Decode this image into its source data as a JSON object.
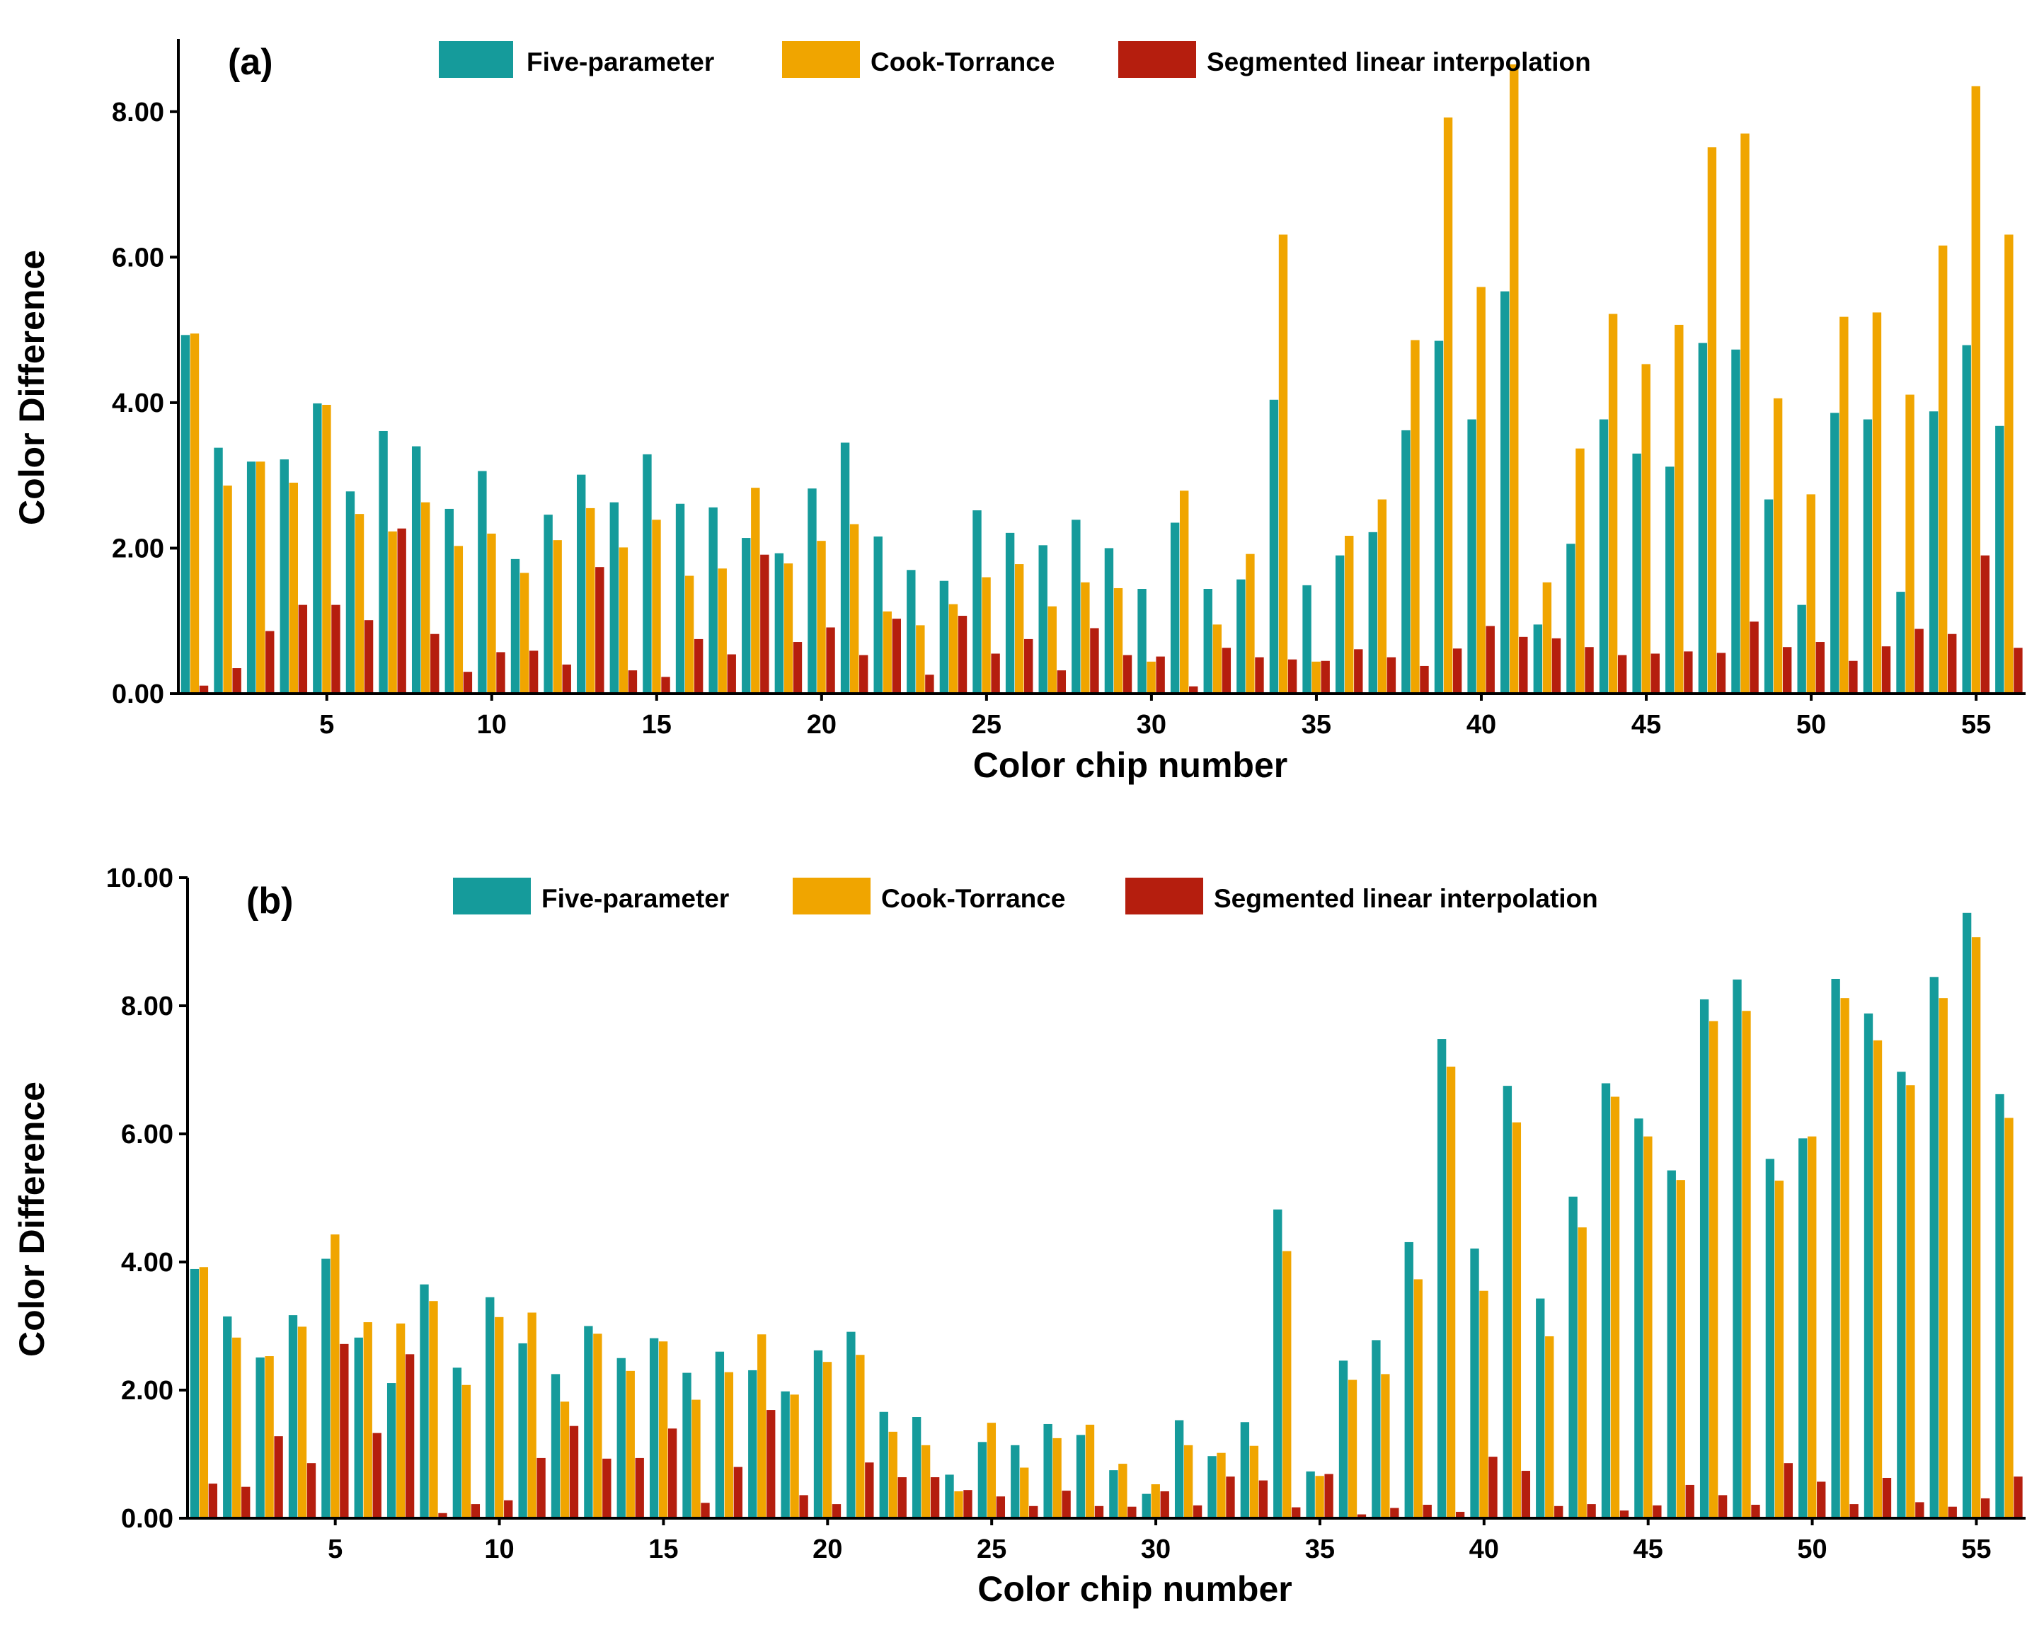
{
  "colors": {
    "five_parameter": "#159B9B",
    "cook_torrance": "#F0A500",
    "segmented": "#B51E0E",
    "axis": "#000000"
  },
  "chart_data": [
    {
      "type": "bar",
      "panel_label": "(a)",
      "xlabel": "Color chip number",
      "ylabel": "Color Difference",
      "ylim": [
        0,
        9.0
      ],
      "yticks": [
        0,
        2,
        4,
        6,
        8
      ],
      "ytick_labels": [
        "0.00",
        "2.00",
        "4.00",
        "6.00",
        "8.00"
      ],
      "xticks": [
        5,
        10,
        15,
        20,
        25,
        30,
        35,
        40,
        45,
        50,
        55
      ],
      "xtick_labels": [
        "5",
        "10",
        "15",
        "20",
        "25",
        "30",
        "35",
        "40",
        "45",
        "50",
        "55"
      ],
      "legend": [
        "Five-parameter",
        "Cook-Torrance",
        "Segmented linear interpolation"
      ],
      "categories": [
        1,
        2,
        3,
        4,
        5,
        6,
        7,
        8,
        9,
        10,
        11,
        12,
        13,
        14,
        15,
        16,
        17,
        18,
        19,
        20,
        21,
        22,
        23,
        24,
        25,
        26,
        27,
        28,
        29,
        30,
        31,
        32,
        33,
        34,
        35,
        36,
        37,
        38,
        39,
        40,
        41,
        42,
        43,
        44,
        45,
        46,
        47,
        48,
        49,
        50,
        51,
        52,
        53,
        54,
        55,
        56
      ],
      "series": [
        {
          "name": "Five-parameter",
          "values": [
            4.93,
            3.38,
            3.19,
            3.22,
            3.99,
            2.78,
            3.61,
            3.4,
            2.54,
            3.06,
            1.85,
            2.46,
            3.01,
            2.63,
            3.29,
            2.61,
            2.56,
            2.14,
            1.93,
            2.82,
            3.45,
            2.16,
            1.7,
            1.55,
            2.52,
            2.21,
            2.04,
            2.39,
            2.0,
            1.44,
            2.35,
            1.44,
            1.57,
            4.04,
            1.49,
            1.9,
            2.22,
            3.62,
            4.85,
            3.77,
            5.53,
            0.95,
            2.06,
            3.77,
            3.3,
            3.12,
            4.82,
            4.73,
            2.67,
            1.22,
            3.86,
            3.77,
            1.4,
            3.88,
            4.79,
            3.68
          ]
        },
        {
          "name": "Cook-Torrance",
          "values": [
            4.95,
            2.86,
            3.19,
            2.9,
            3.97,
            2.47,
            2.23,
            2.63,
            2.03,
            2.2,
            1.66,
            2.11,
            2.55,
            2.01,
            2.39,
            1.62,
            1.72,
            2.83,
            1.79,
            2.1,
            2.33,
            1.13,
            0.94,
            1.23,
            1.6,
            1.78,
            1.2,
            1.53,
            1.45,
            0.44,
            2.79,
            0.95,
            1.92,
            6.31,
            0.44,
            2.17,
            2.67,
            4.86,
            7.92,
            5.59,
            8.65,
            1.53,
            3.37,
            5.22,
            4.53,
            5.07,
            7.51,
            7.7,
            4.06,
            2.74,
            5.18,
            5.24,
            4.11,
            6.16,
            8.35,
            6.31
          ]
        },
        {
          "name": "Segmented linear interpolation",
          "values": [
            0.11,
            0.35,
            0.86,
            1.22,
            1.22,
            1.01,
            2.27,
            0.82,
            0.3,
            0.57,
            0.59,
            0.4,
            1.74,
            0.32,
            0.23,
            0.75,
            0.54,
            1.91,
            0.71,
            0.91,
            0.53,
            1.03,
            0.26,
            1.07,
            0.55,
            0.75,
            0.32,
            0.9,
            0.53,
            0.51,
            0.1,
            0.63,
            0.5,
            0.47,
            0.45,
            0.61,
            0.5,
            0.38,
            0.62,
            0.93,
            0.78,
            0.76,
            0.64,
            0.53,
            0.55,
            0.58,
            0.56,
            0.99,
            0.64,
            0.71,
            0.45,
            0.65,
            0.89,
            0.82,
            1.9,
            0.63
          ]
        }
      ]
    },
    {
      "type": "bar",
      "panel_label": "(b)",
      "xlabel": "Color chip number",
      "ylabel": "Color Difference",
      "ylim": [
        0,
        10.0
      ],
      "yticks": [
        0,
        2,
        4,
        6,
        8,
        10
      ],
      "ytick_labels": [
        "0.00",
        "2.00",
        "4.00",
        "6.00",
        "8.00",
        "10.00"
      ],
      "xticks": [
        5,
        10,
        15,
        20,
        25,
        30,
        35,
        40,
        45,
        50,
        55
      ],
      "xtick_labels": [
        "5",
        "10",
        "15",
        "20",
        "25",
        "30",
        "35",
        "40",
        "45",
        "50",
        "55"
      ],
      "legend": [
        "Five-parameter",
        "Cook-Torrance",
        "Segmented linear interpolation"
      ],
      "categories": [
        1,
        2,
        3,
        4,
        5,
        6,
        7,
        8,
        9,
        10,
        11,
        12,
        13,
        14,
        15,
        16,
        17,
        18,
        19,
        20,
        21,
        22,
        23,
        24,
        25,
        26,
        27,
        28,
        29,
        30,
        31,
        32,
        33,
        34,
        35,
        36,
        37,
        38,
        39,
        40,
        41,
        42,
        43,
        44,
        45,
        46,
        47,
        48,
        49,
        50,
        51,
        52,
        53,
        54,
        55,
        56
      ],
      "series": [
        {
          "name": "Five-parameter",
          "values": [
            3.89,
            3.15,
            2.51,
            3.17,
            4.05,
            2.82,
            2.11,
            3.65,
            2.35,
            3.45,
            2.73,
            2.25,
            3.0,
            2.5,
            2.81,
            2.27,
            2.6,
            2.31,
            1.98,
            2.62,
            2.91,
            1.66,
            1.58,
            0.68,
            1.19,
            1.14,
            1.47,
            1.3,
            0.75,
            0.38,
            1.53,
            0.97,
            1.5,
            4.82,
            0.73,
            2.46,
            2.78,
            4.31,
            7.48,
            4.21,
            6.75,
            3.43,
            5.02,
            6.79,
            6.24,
            5.43,
            8.1,
            8.41,
            5.61,
            5.93,
            8.42,
            7.88,
            6.97,
            8.45,
            9.45,
            6.62
          ]
        },
        {
          "name": "Cook-Torrance",
          "values": [
            3.92,
            2.82,
            2.53,
            2.99,
            4.43,
            3.06,
            3.04,
            3.39,
            2.08,
            3.14,
            3.21,
            1.82,
            2.88,
            2.3,
            2.76,
            1.85,
            2.28,
            2.87,
            1.93,
            2.44,
            2.55,
            1.35,
            1.14,
            0.42,
            1.49,
            0.79,
            1.25,
            1.46,
            0.85,
            0.53,
            1.14,
            1.02,
            1.13,
            4.17,
            0.66,
            2.16,
            2.25,
            3.73,
            7.05,
            3.55,
            6.18,
            2.84,
            4.54,
            6.58,
            5.96,
            5.28,
            7.76,
            7.92,
            5.27,
            5.96,
            8.12,
            7.46,
            6.76,
            8.12,
            9.07,
            6.25
          ]
        },
        {
          "name": "Segmented linear interpolation",
          "values": [
            0.54,
            0.49,
            1.28,
            0.86,
            2.72,
            1.33,
            2.56,
            0.08,
            0.22,
            0.28,
            0.94,
            1.44,
            0.93,
            0.94,
            1.4,
            0.24,
            0.8,
            1.69,
            0.36,
            0.22,
            0.87,
            0.64,
            0.64,
            0.44,
            0.34,
            0.19,
            0.43,
            0.19,
            0.18,
            0.42,
            0.2,
            0.65,
            0.59,
            0.17,
            0.69,
            0.06,
            0.16,
            0.21,
            0.1,
            0.96,
            0.74,
            0.19,
            0.22,
            0.12,
            0.2,
            0.52,
            0.36,
            0.21,
            0.86,
            0.57,
            0.22,
            0.63,
            0.25,
            0.18,
            0.31,
            0.65
          ]
        }
      ]
    }
  ]
}
